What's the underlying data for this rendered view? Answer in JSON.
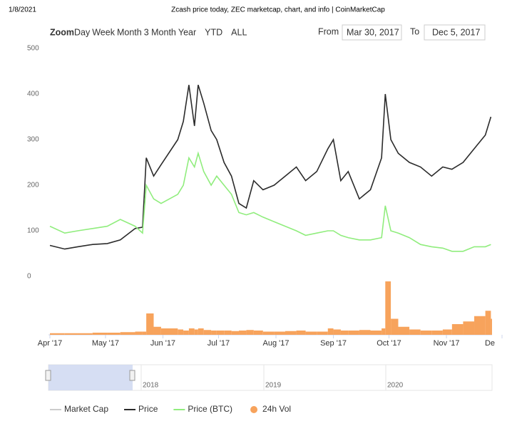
{
  "page_header": {
    "date": "1/8/2021",
    "title": "Zcash price today, ZEC marketcap, chart, and info | CoinMarketCap"
  },
  "controls": {
    "zoom_label": "Zoom",
    "zoom_buttons": [
      "Day",
      "Week",
      "Month",
      "3 Month",
      "Year",
      "YTD",
      "ALL"
    ],
    "from_label": "From",
    "from": "Mar 30, 2017",
    "to_label": "To",
    "to": "Dec 5, 2017"
  },
  "navigator": {
    "labels": [
      "2018",
      "2019",
      "2020"
    ]
  },
  "chart_data": {
    "type": "line",
    "x": [
      "2017-04-01",
      "2017-04-09",
      "2017-04-16",
      "2017-04-24",
      "2017-05-02",
      "2017-05-09",
      "2017-05-17",
      "2017-05-21",
      "2017-05-23",
      "2017-05-27",
      "2017-05-31",
      "2017-06-09",
      "2017-06-12",
      "2017-06-15",
      "2017-06-18",
      "2017-06-20",
      "2017-06-23",
      "2017-06-27",
      "2017-06-30",
      "2017-07-04",
      "2017-07-08",
      "2017-07-12",
      "2017-07-16",
      "2017-07-20",
      "2017-07-25",
      "2017-07-31",
      "2017-08-06",
      "2017-08-12",
      "2017-08-17",
      "2017-08-23",
      "2017-08-29",
      "2017-09-01",
      "2017-09-05",
      "2017-09-09",
      "2017-09-15",
      "2017-09-21",
      "2017-09-27",
      "2017-09-29",
      "2017-10-02",
      "2017-10-06",
      "2017-10-12",
      "2017-10-18",
      "2017-10-24",
      "2017-10-30",
      "2017-11-04",
      "2017-11-10",
      "2017-11-16",
      "2017-11-22",
      "2017-11-25"
    ],
    "series": [
      {
        "name": "Market Cap",
        "color": "#cccccc",
        "visible": false,
        "values": [
          null,
          null,
          null,
          null,
          null,
          null,
          null,
          null,
          null,
          null,
          null,
          null,
          null,
          null,
          null,
          null,
          null,
          null,
          null,
          null,
          null,
          null,
          null,
          null,
          null,
          null,
          null,
          null,
          null,
          null,
          null,
          null,
          null,
          null,
          null,
          null,
          null,
          null,
          null,
          null,
          null,
          null,
          null,
          null,
          null,
          null,
          null,
          null,
          null
        ]
      },
      {
        "name": "Price",
        "color": "#2b2b2b",
        "values": [
          68,
          60,
          65,
          70,
          72,
          80,
          105,
          108,
          260,
          220,
          245,
          300,
          340,
          420,
          330,
          420,
          380,
          320,
          300,
          250,
          220,
          160,
          150,
          210,
          190,
          200,
          220,
          240,
          210,
          230,
          280,
          300,
          210,
          230,
          170,
          190,
          260,
          400,
          300,
          270,
          250,
          240,
          220,
          240,
          235,
          250,
          280,
          310,
          350
        ]
      },
      {
        "name": "Price (BTC)",
        "color": "#90ed7d",
        "values": [
          110,
          95,
          100,
          105,
          110,
          125,
          110,
          95,
          200,
          170,
          160,
          180,
          200,
          260,
          240,
          270,
          230,
          200,
          220,
          200,
          180,
          140,
          135,
          140,
          130,
          120,
          110,
          100,
          90,
          95,
          100,
          100,
          90,
          85,
          80,
          80,
          85,
          155,
          100,
          95,
          85,
          70,
          65,
          62,
          55,
          55,
          65,
          65,
          70
        ]
      },
      {
        "name": "24h Vol",
        "color": "#f7a35c",
        "axis": "y2",
        "marker": "dot",
        "values": [
          3,
          3,
          3,
          4,
          4,
          5,
          6,
          6,
          40,
          15,
          12,
          10,
          8,
          12,
          10,
          12,
          9,
          8,
          8,
          8,
          7,
          8,
          9,
          8,
          6,
          6,
          7,
          8,
          6,
          6,
          12,
          10,
          8,
          8,
          9,
          8,
          12,
          100,
          30,
          15,
          10,
          8,
          8,
          10,
          20,
          25,
          35,
          45,
          30
        ]
      }
    ],
    "xlim": [
      "2017-04-01",
      "2017-12-01"
    ],
    "xticks": [
      {
        "value": "2017-04-01",
        "label": "Apr '17"
      },
      {
        "value": "2017-05-01",
        "label": "May '17"
      },
      {
        "value": "2017-06-01",
        "label": "Jun '17"
      },
      {
        "value": "2017-07-01",
        "label": "Jul '17"
      },
      {
        "value": "2017-08-01",
        "label": "Aug '17"
      },
      {
        "value": "2017-09-01",
        "label": "Sep '17"
      },
      {
        "value": "2017-10-01",
        "label": "Oct '17"
      },
      {
        "value": "2017-11-01",
        "label": "Nov '17"
      },
      {
        "value": "2017-12-01",
        "label": "De"
      }
    ],
    "ylim": [
      0,
      500
    ],
    "yticks": [
      0,
      100,
      200,
      300,
      400,
      500
    ],
    "y2lim": [
      0,
      100
    ],
    "grid": false
  }
}
